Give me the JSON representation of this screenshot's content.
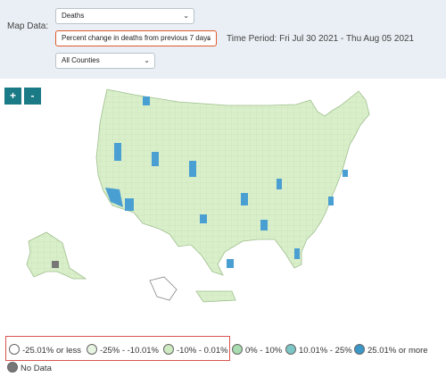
{
  "controls": {
    "map_data_label": "Map Data:",
    "metric_select": "Deaths",
    "change_select": "Percent change in deaths from previous 7 days",
    "county_select": "All Counties",
    "time_period": "Time Period: Fri Jul 30 2021 - Thu Aug 05 2021",
    "zoom_in": "+",
    "zoom_out": "-"
  },
  "legend": [
    {
      "label": "-25.01% or less",
      "color": "#ffffff"
    },
    {
      "label": "-25% - -10.01%",
      "color": "#e6f4e1"
    },
    {
      "label": "-10% - 0.01%",
      "color": "#cdeac1"
    },
    {
      "label": "0% - 10%",
      "color": "#a9dcb0"
    },
    {
      "label": "10.01% - 25%",
      "color": "#7cc6c5"
    },
    {
      "label": "25.01% or more",
      "color": "#3a97c8"
    },
    {
      "label": "No Data",
      "color": "#777777"
    }
  ],
  "colors": {
    "land": "#d9efc9",
    "hot": "#4a9fd2",
    "border": "#c3d9b3"
  }
}
